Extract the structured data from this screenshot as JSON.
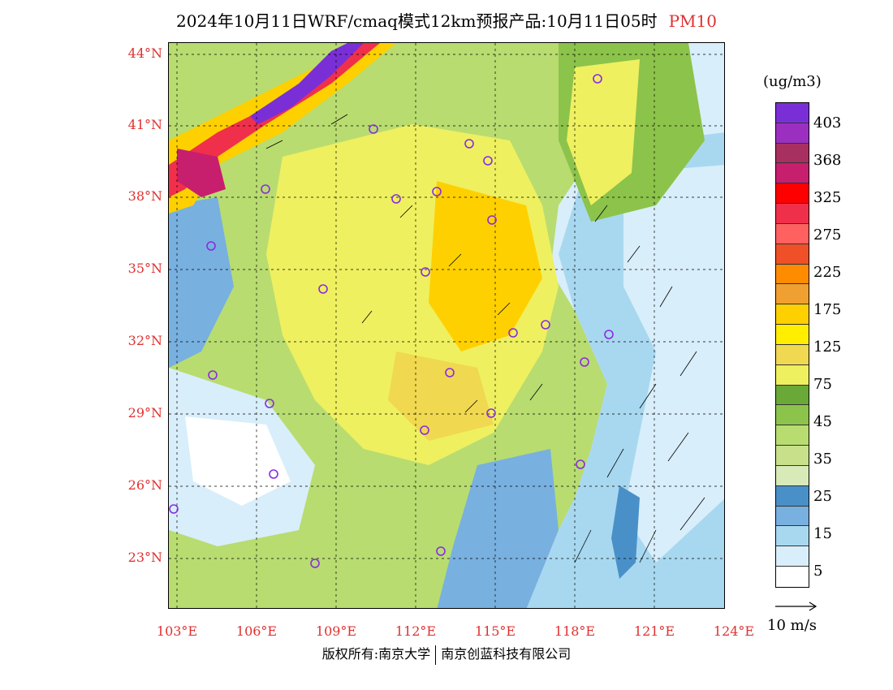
{
  "title": "2024年10月11日WRF/cmaq模式12km预报产品:10月11日05时",
  "pollutant": "PM10",
  "units": "(ug/m3)",
  "lat_labels": [
    "44°N",
    "41°N",
    "38°N",
    "35°N",
    "32°N",
    "29°N",
    "26°N",
    "23°N"
  ],
  "lon_labels": [
    "103°E",
    "106°E",
    "109°E",
    "112°E",
    "115°E",
    "118°E",
    "121°E",
    "124°E"
  ],
  "colorbar": {
    "labels": [
      "403",
      "368",
      "325",
      "275",
      "225",
      "175",
      "125",
      "75",
      "45",
      "35",
      "25",
      "15",
      "5"
    ],
    "colors": [
      "#7a2fd6",
      "#9b30c0",
      "#a83060",
      "#c81e6e",
      "#ff0000",
      "#f0304a",
      "#ff6060",
      "#f05028",
      "#ff8c00",
      "#f0a030",
      "#ffd000",
      "#ffee00",
      "#f0d850",
      "#eef060",
      "#6aa838",
      "#8cc34a",
      "#b8dc70",
      "#c8e08a",
      "#d8eab8",
      "#4a90c8",
      "#78b0e0",
      "#a8d8f0",
      "#d8eefa",
      "#ffffff"
    ]
  },
  "vector_scale": "10 m/s",
  "copyright": {
    "left": "版权所有:南京大学",
    "right": "南京创蓝科技有限公司"
  }
}
